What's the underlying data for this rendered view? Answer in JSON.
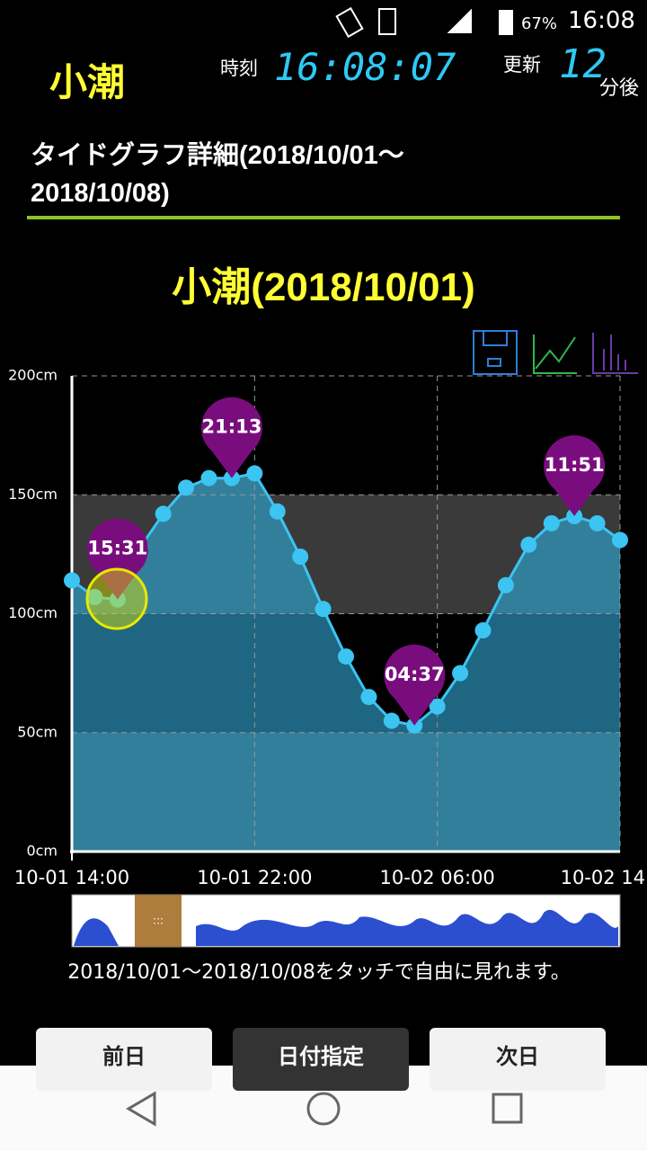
{
  "status_bar": {
    "battery": "67%",
    "time": "16:08"
  },
  "header": {
    "tide_name": "小潮",
    "clock_label": "時刻",
    "clock": "16:08:07",
    "update_label": "更新",
    "update_minutes": "12",
    "update_unit": "分後"
  },
  "page_title": "タイドグラフ詳細(2018/10/01～2018/10/08)",
  "chart_data": {
    "type": "line",
    "title": "小潮(2018/10/01)",
    "categories": [
      "10-01 14:00",
      null,
      null,
      null,
      null,
      null,
      null,
      null,
      "10-01 22:00",
      null,
      null,
      null,
      null,
      null,
      null,
      null,
      "10-02 06:00",
      null,
      null,
      null,
      null,
      null,
      null,
      null,
      "10-02 14"
    ],
    "values": [
      114,
      107,
      106,
      128,
      142,
      153,
      157,
      157,
      159,
      143,
      124,
      102,
      82,
      65,
      55,
      53,
      61,
      75,
      93,
      112,
      129,
      138,
      141,
      138,
      131
    ],
    "color": "#3cc4f2",
    "ylim": [
      0,
      200
    ],
    "yticks": [
      {
        "value": 0,
        "label": "0cm"
      },
      {
        "value": 50,
        "label": "50cm"
      },
      {
        "value": 100,
        "label": "100cm"
      },
      {
        "value": 150,
        "label": "150cm"
      },
      {
        "value": 200,
        "label": "200cm"
      }
    ],
    "grid": true,
    "annotations": [
      {
        "label": "15:31"
      },
      {
        "label": "21:13"
      },
      {
        "label": "04:37"
      },
      {
        "label": "11:51"
      }
    ]
  },
  "caption": "2018/10/01～2018/10/08をタッチで自由に見れます。",
  "buttons": {
    "prev": "前日",
    "pick": "日付指定",
    "next": "次日"
  }
}
